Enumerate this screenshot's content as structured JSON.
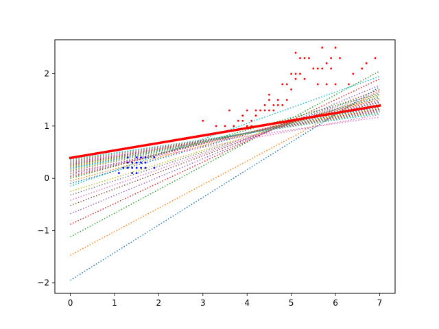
{
  "chart_data": {
    "type": "scatter",
    "title": "",
    "xlabel": "",
    "ylabel": "",
    "xlim": [
      -0.35,
      7.35
    ],
    "ylim": [
      -2.2,
      2.65
    ],
    "grid": false,
    "legend": "none",
    "xticks": [
      0,
      1,
      2,
      3,
      4,
      5,
      6,
      7
    ],
    "yticks": [
      -2,
      -1,
      0,
      1,
      2
    ],
    "xtick_labels": [
      "0",
      "1",
      "2",
      "3",
      "4",
      "5",
      "6",
      "7"
    ],
    "ytick_labels": [
      "−2",
      "−1",
      "0",
      "1",
      "2"
    ],
    "scatter_series": [
      {
        "color": "#0000ff",
        "points": [
          [
            1.1,
            0.1
          ],
          [
            1.2,
            0.2
          ],
          [
            1.3,
            0.2
          ],
          [
            1.3,
            0.3
          ],
          [
            1.3,
            0.4
          ],
          [
            1.4,
            0.1
          ],
          [
            1.4,
            0.2
          ],
          [
            1.4,
            0.3
          ],
          [
            1.5,
            0.1
          ],
          [
            1.5,
            0.2
          ],
          [
            1.5,
            0.3
          ],
          [
            1.5,
            0.4
          ],
          [
            1.6,
            0.2
          ],
          [
            1.6,
            0.3
          ],
          [
            1.6,
            0.4
          ],
          [
            1.7,
            0.2
          ],
          [
            1.7,
            0.3
          ],
          [
            1.7,
            0.4
          ],
          [
            1.9,
            0.2
          ],
          [
            1.9,
            0.4
          ]
        ]
      },
      {
        "color": "#ff0000",
        "points": [
          [
            3.0,
            1.1
          ],
          [
            3.3,
            1.0
          ],
          [
            3.5,
            1.0
          ],
          [
            3.6,
            1.3
          ],
          [
            3.7,
            1.0
          ],
          [
            3.8,
            1.1
          ],
          [
            3.9,
            1.1
          ],
          [
            3.9,
            1.2
          ],
          [
            4.0,
            1.0
          ],
          [
            4.0,
            1.3
          ],
          [
            4.1,
            1.0
          ],
          [
            4.1,
            1.1
          ],
          [
            4.2,
            1.2
          ],
          [
            4.2,
            1.3
          ],
          [
            4.3,
            1.3
          ],
          [
            4.4,
            1.3
          ],
          [
            4.4,
            1.4
          ],
          [
            4.5,
            1.3
          ],
          [
            4.5,
            1.5
          ],
          [
            4.5,
            1.6
          ],
          [
            4.6,
            1.3
          ],
          [
            4.6,
            1.4
          ],
          [
            4.7,
            1.4
          ],
          [
            4.7,
            1.5
          ],
          [
            4.8,
            1.4
          ],
          [
            4.8,
            1.8
          ],
          [
            4.9,
            1.8
          ],
          [
            4.9,
            1.5
          ],
          [
            5.0,
            1.7
          ],
          [
            5.0,
            2.0
          ],
          [
            5.1,
            1.9
          ],
          [
            5.1,
            2.0
          ],
          [
            5.1,
            2.4
          ],
          [
            5.2,
            2.0
          ],
          [
            5.2,
            2.3
          ],
          [
            5.3,
            1.9
          ],
          [
            5.3,
            2.3
          ],
          [
            5.4,
            2.3
          ],
          [
            5.5,
            2.1
          ],
          [
            5.6,
            1.8
          ],
          [
            5.6,
            2.1
          ],
          [
            5.7,
            2.1
          ],
          [
            5.7,
            2.5
          ],
          [
            5.8,
            1.8
          ],
          [
            5.8,
            2.2
          ],
          [
            5.9,
            2.1
          ],
          [
            5.9,
            2.3
          ],
          [
            6.0,
            1.8
          ],
          [
            6.0,
            2.5
          ],
          [
            6.1,
            2.3
          ],
          [
            6.3,
            1.8
          ],
          [
            6.4,
            2.0
          ],
          [
            6.6,
            2.1
          ],
          [
            6.7,
            2.2
          ],
          [
            6.9,
            2.3
          ]
        ]
      }
    ],
    "fit_lines": [
      {
        "color": "#1f77b4",
        "x": [
          0,
          7
        ],
        "y": [
          -1.95,
          1.75
        ]
      },
      {
        "color": "#ff7f0e",
        "x": [
          0,
          7
        ],
        "y": [
          -1.47,
          1.68
        ]
      },
      {
        "color": "#2ca02c",
        "x": [
          0,
          7
        ],
        "y": [
          -1.12,
          2.05
        ]
      },
      {
        "color": "#d62728",
        "x": [
          0,
          7
        ],
        "y": [
          -0.88,
          1.9
        ]
      },
      {
        "color": "#9467bd",
        "x": [
          0,
          7
        ],
        "y": [
          -0.68,
          1.78
        ]
      },
      {
        "color": "#8c564b",
        "x": [
          0,
          7
        ],
        "y": [
          -0.52,
          1.7
        ]
      },
      {
        "color": "#e377c2",
        "x": [
          0,
          7
        ],
        "y": [
          -0.42,
          1.65
        ]
      },
      {
        "color": "#7f7f7f",
        "x": [
          0,
          7
        ],
        "y": [
          -0.32,
          1.6
        ]
      },
      {
        "color": "#bcbd22",
        "x": [
          0,
          7
        ],
        "y": [
          -0.25,
          1.58
        ]
      },
      {
        "color": "#17becf",
        "x": [
          0,
          7
        ],
        "y": [
          -0.15,
          1.95
        ]
      },
      {
        "color": "#1f77b4",
        "x": [
          0,
          7
        ],
        "y": [
          -0.1,
          1.55
        ]
      },
      {
        "color": "#ff7f0e",
        "x": [
          0,
          7
        ],
        "y": [
          -0.05,
          1.53
        ]
      },
      {
        "color": "#2ca02c",
        "x": [
          0,
          7
        ],
        "y": [
          0.0,
          1.62
        ]
      },
      {
        "color": "#d62728",
        "x": [
          0,
          7
        ],
        "y": [
          0.03,
          1.5
        ]
      },
      {
        "color": "#9467bd",
        "x": [
          0,
          7
        ],
        "y": [
          0.06,
          1.47
        ]
      },
      {
        "color": "#8c564b",
        "x": [
          0,
          7
        ],
        "y": [
          0.09,
          1.45
        ]
      },
      {
        "color": "#e377c2",
        "x": [
          0,
          7
        ],
        "y": [
          0.12,
          1.22
        ]
      },
      {
        "color": "#7f7f7f",
        "x": [
          0,
          7
        ],
        "y": [
          0.14,
          1.42
        ]
      },
      {
        "color": "#bcbd22",
        "x": [
          0,
          7
        ],
        "y": [
          0.16,
          1.4
        ]
      },
      {
        "color": "#17becf",
        "x": [
          0,
          7
        ],
        "y": [
          0.18,
          1.38
        ]
      },
      {
        "color": "#1f77b4",
        "x": [
          0,
          7
        ],
        "y": [
          0.2,
          1.37
        ]
      },
      {
        "color": "#ff7f0e",
        "x": [
          0,
          7
        ],
        "y": [
          0.22,
          1.35
        ]
      },
      {
        "color": "#2ca02c",
        "x": [
          0,
          7
        ],
        "y": [
          0.24,
          1.33
        ]
      },
      {
        "color": "#d62728",
        "x": [
          0,
          7
        ],
        "y": [
          0.26,
          1.32
        ]
      },
      {
        "color": "#9467bd",
        "x": [
          0,
          7
        ],
        "y": [
          0.28,
          1.3
        ]
      },
      {
        "color": "#8c564b",
        "x": [
          0,
          7
        ],
        "y": [
          0.3,
          1.28
        ]
      },
      {
        "color": "#e377c2",
        "x": [
          0,
          7
        ],
        "y": [
          0.32,
          1.17
        ]
      },
      {
        "color": "#7f7f7f",
        "x": [
          0,
          7
        ],
        "y": [
          0.33,
          1.27
        ]
      },
      {
        "color": "#bcbd22",
        "x": [
          0,
          7
        ],
        "y": [
          0.35,
          1.25
        ]
      },
      {
        "color": "#17becf",
        "x": [
          0,
          7
        ],
        "y": [
          0.36,
          1.24
        ]
      }
    ],
    "best_line": {
      "color": "#ff0000",
      "x": [
        0,
        7
      ],
      "y": [
        0.39,
        1.39
      ]
    }
  }
}
